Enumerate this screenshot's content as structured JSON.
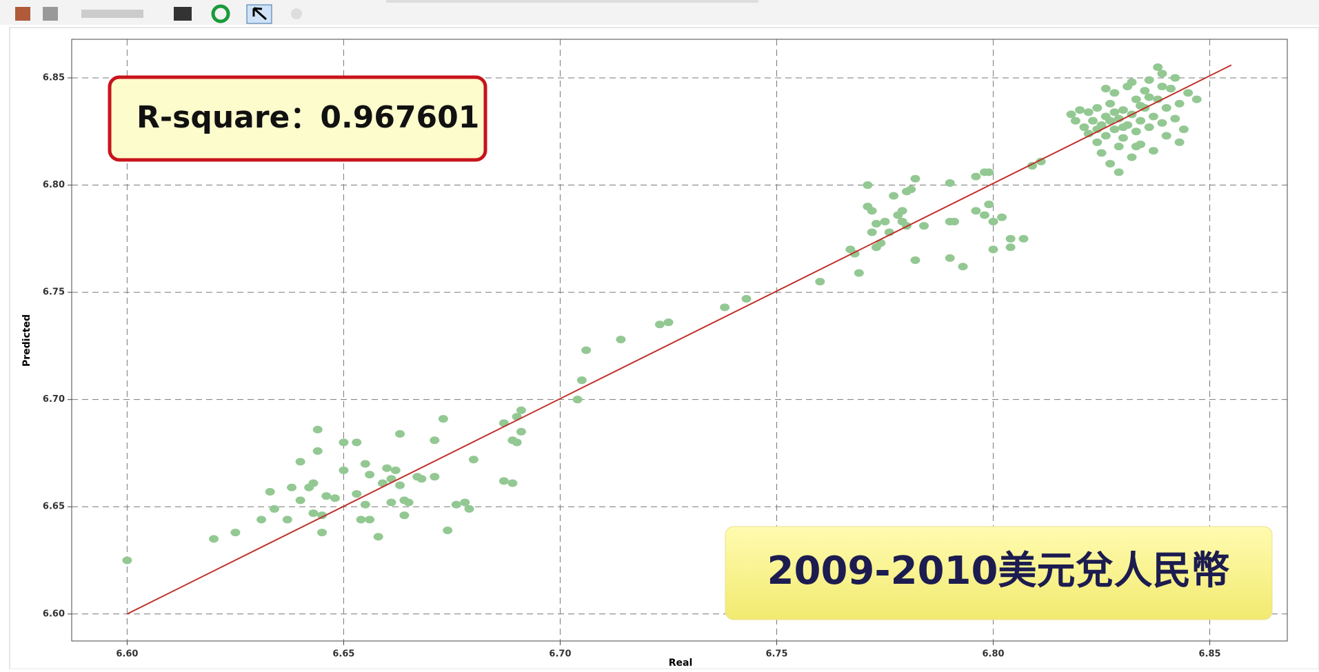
{
  "chart_data": {
    "type": "scatter",
    "xlabel": "Real",
    "ylabel": "Predicted",
    "annotations": [
      "R-square：0.967601",
      "2009-2010美元兌人民幣"
    ],
    "color": "#93c893",
    "line_color": "#c0302a",
    "grid": true,
    "xlim": [
      6.5872,
      6.8679
    ],
    "ylim": [
      6.5874,
      6.868
    ],
    "xticks": [
      {
        "value": 6.6,
        "label": "6.60"
      },
      6.65,
      {
        "value": 6.7,
        "label": "6.70"
      },
      6.75,
      {
        "value": 6.8,
        "label": "6.80"
      },
      6.85
    ],
    "yticks": [
      {
        "value": 6.6,
        "label": "6.60"
      },
      6.65,
      {
        "value": 6.7,
        "label": "6.70"
      },
      6.75,
      {
        "value": 6.8,
        "label": "6.80"
      },
      6.85
    ],
    "fit_line": {
      "x": [
        6.6,
        6.855
      ],
      "y": [
        6.6,
        6.856
      ]
    },
    "x": [
      6.6,
      6.62,
      6.625,
      6.631,
      6.633,
      6.634,
      6.637,
      6.638,
      6.64,
      6.64,
      6.642,
      6.643,
      6.643,
      6.644,
      6.644,
      6.645,
      6.645,
      6.646,
      6.648,
      6.65,
      6.65,
      6.653,
      6.653,
      6.654,
      6.655,
      6.655,
      6.656,
      6.656,
      6.658,
      6.659,
      6.66,
      6.661,
      6.661,
      6.662,
      6.663,
      6.663,
      6.664,
      6.664,
      6.665,
      6.667,
      6.668,
      6.671,
      6.671,
      6.673,
      6.674,
      6.676,
      6.678,
      6.679,
      6.68,
      6.687,
      6.687,
      6.689,
      6.689,
      6.69,
      6.69,
      6.691,
      6.691,
      6.704,
      6.705,
      6.706,
      6.714,
      6.723,
      6.725,
      6.738,
      6.743,
      6.76,
      6.767,
      6.768,
      6.769,
      6.771,
      6.771,
      6.772,
      6.772,
      6.773,
      6.773,
      6.774,
      6.775,
      6.776,
      6.777,
      6.778,
      6.779,
      6.779,
      6.78,
      6.78,
      6.781,
      6.782,
      6.782,
      6.784,
      6.79,
      6.79,
      6.79,
      6.791,
      6.793,
      6.796,
      6.796,
      6.798,
      6.798,
      6.799,
      6.799,
      6.8,
      6.8,
      6.802,
      6.804,
      6.804,
      6.807,
      6.809,
      6.811,
      6.818,
      6.819,
      6.82,
      6.821,
      6.822,
      6.822,
      6.823,
      6.824,
      6.824,
      6.825,
      6.825,
      6.826,
      6.826,
      6.827,
      6.827,
      6.828,
      6.828,
      6.829,
      6.829,
      6.83,
      6.83,
      6.831,
      6.831,
      6.832,
      6.832,
      6.833,
      6.833,
      6.834,
      6.834,
      6.835,
      6.835,
      6.836,
      6.836,
      6.837,
      6.837,
      6.838,
      6.838,
      6.839,
      6.839,
      6.84,
      6.84,
      6.841,
      6.842,
      6.842,
      6.843,
      6.843,
      6.844,
      6.845,
      6.847,
      6.829,
      6.826,
      6.832,
      6.83,
      6.828,
      6.834,
      6.836,
      6.824,
      6.833,
      6.839,
      6.827
    ],
    "values": [
      6.625,
      6.635,
      6.638,
      6.644,
      6.657,
      6.649,
      6.644,
      6.659,
      6.671,
      6.653,
      6.659,
      6.647,
      6.661,
      6.676,
      6.686,
      6.638,
      6.646,
      6.655,
      6.654,
      6.68,
      6.667,
      6.68,
      6.656,
      6.644,
      6.67,
      6.651,
      6.644,
      6.665,
      6.636,
      6.661,
      6.668,
      6.652,
      6.663,
      6.667,
      6.684,
      6.66,
      6.653,
      6.646,
      6.652,
      6.664,
      6.663,
      6.664,
      6.681,
      6.691,
      6.639,
      6.651,
      6.652,
      6.649,
      6.672,
      6.662,
      6.689,
      6.661,
      6.681,
      6.68,
      6.692,
      6.685,
      6.695,
      6.7,
      6.709,
      6.723,
      6.728,
      6.735,
      6.736,
      6.743,
      6.747,
      6.755,
      6.77,
      6.768,
      6.759,
      6.8,
      6.79,
      6.778,
      6.788,
      6.782,
      6.771,
      6.773,
      6.783,
      6.778,
      6.795,
      6.786,
      6.783,
      6.788,
      6.781,
      6.797,
      6.798,
      6.803,
      6.765,
      6.781,
      6.783,
      6.801,
      6.766,
      6.783,
      6.762,
      6.804,
      6.788,
      6.806,
      6.786,
      6.806,
      6.791,
      6.783,
      6.77,
      6.785,
      6.775,
      6.771,
      6.775,
      6.809,
      6.811,
      6.833,
      6.83,
      6.835,
      6.827,
      6.834,
      6.824,
      6.83,
      6.836,
      6.82,
      6.828,
      6.815,
      6.832,
      6.823,
      6.838,
      6.81,
      6.826,
      6.843,
      6.818,
      6.831,
      6.835,
      6.822,
      6.828,
      6.846,
      6.813,
      6.833,
      6.825,
      6.84,
      6.83,
      6.819,
      6.844,
      6.836,
      6.827,
      6.849,
      6.832,
      6.816,
      6.84,
      6.855,
      6.829,
      6.852,
      6.836,
      6.823,
      6.845,
      6.831,
      6.85,
      6.838,
      6.82,
      6.826,
      6.843,
      6.84,
      6.806,
      6.845,
      6.848,
      6.827,
      6.834,
      6.837,
      6.841,
      6.826,
      6.818,
      6.846,
      6.83
    ]
  }
}
